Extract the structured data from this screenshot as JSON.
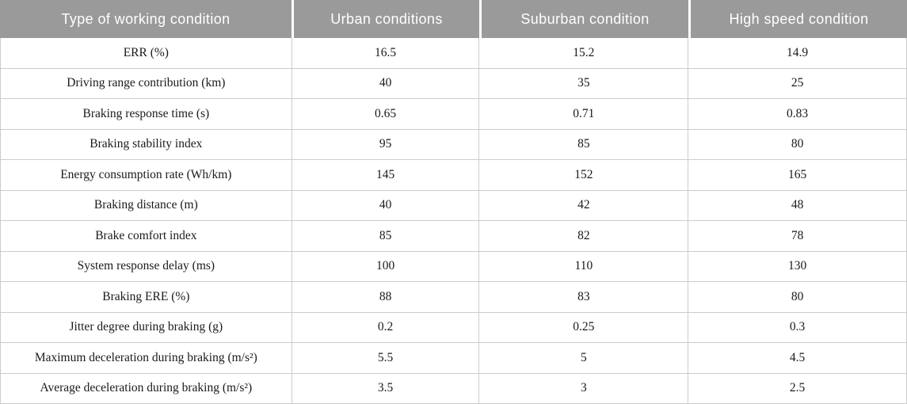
{
  "table": {
    "header": [
      "Type of working condition",
      "Urban conditions",
      "Suburban condition",
      "High speed condition"
    ],
    "rows": [
      {
        "cells": [
          "ERR (%)",
          "16.5",
          "15.2",
          "14.9"
        ]
      },
      {
        "cells": [
          "Driving range contribution (km)",
          "40",
          "35",
          "25"
        ]
      },
      {
        "cells": [
          "Braking response time (s)",
          "0.65",
          "0.71",
          "0.83"
        ]
      },
      {
        "cells": [
          "Braking stability index",
          "95",
          "85",
          "80"
        ]
      },
      {
        "cells": [
          "Energy consumption rate (Wh/km)",
          "145",
          "152",
          "165"
        ]
      },
      {
        "cells": [
          "Braking distance (m)",
          "40",
          "42",
          "48"
        ]
      },
      {
        "cells": [
          "Brake comfort index",
          "85",
          "82",
          "78"
        ]
      },
      {
        "cells": [
          "System response delay (ms)",
          "100",
          "110",
          "130"
        ]
      },
      {
        "cells": [
          "Braking ERE (%)",
          "88",
          "83",
          "80"
        ]
      },
      {
        "cells": [
          "Jitter degree during braking (g)",
          "0.2",
          "0.25",
          "0.3"
        ]
      },
      {
        "cells": [
          "Maximum deceleration during braking (m/s²)",
          "5.5",
          "5",
          "4.5"
        ]
      },
      {
        "cells": [
          "Average deceleration during braking (m/s²)",
          "3.5",
          "3",
          "2.5"
        ]
      }
    ]
  },
  "colors": {
    "header_bg": "#9a9a9a",
    "header_text": "#ffffff",
    "body_text": "#1a1a1a",
    "border": "#cccccc"
  }
}
